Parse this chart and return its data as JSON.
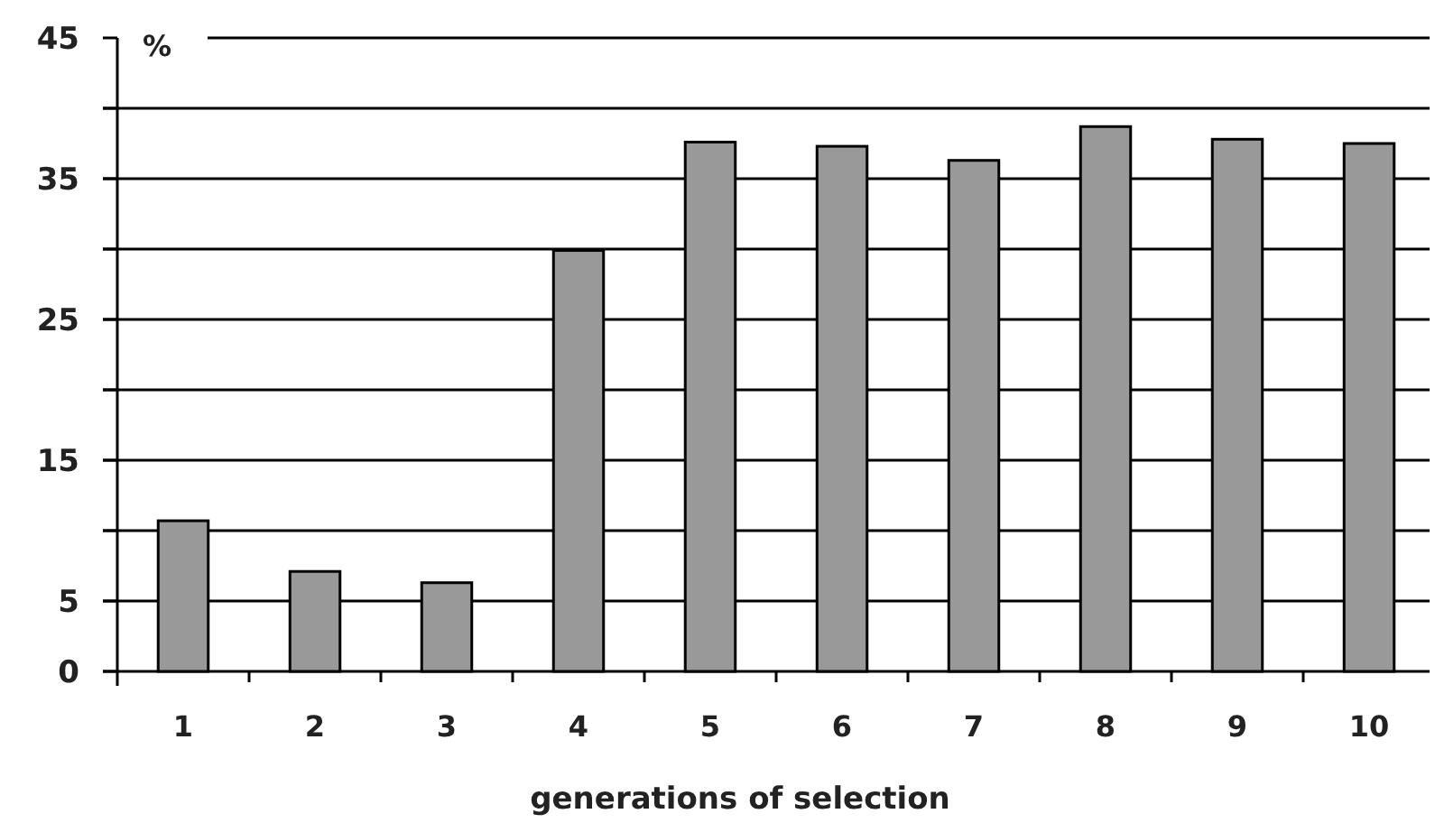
{
  "chart_data": {
    "type": "bar",
    "xlabel": "generations of selection",
    "ylabel": "%",
    "categories": [
      "1",
      "2",
      "3",
      "4",
      "5",
      "6",
      "7",
      "8",
      "9",
      "10"
    ],
    "values": [
      10.7,
      7.1,
      6.3,
      29.9,
      37.6,
      37.3,
      36.3,
      38.7,
      37.8,
      37.5
    ],
    "color": "#999999",
    "ylim": [
      0,
      45
    ],
    "yticks": [
      0,
      5,
      {
        "value": 10,
        "label": null
      },
      15,
      {
        "value": 20,
        "label": null
      },
      25,
      {
        "value": 30,
        "label": null
      },
      35,
      {
        "value": 40,
        "label": null
      },
      45
    ],
    "grid": "y"
  }
}
